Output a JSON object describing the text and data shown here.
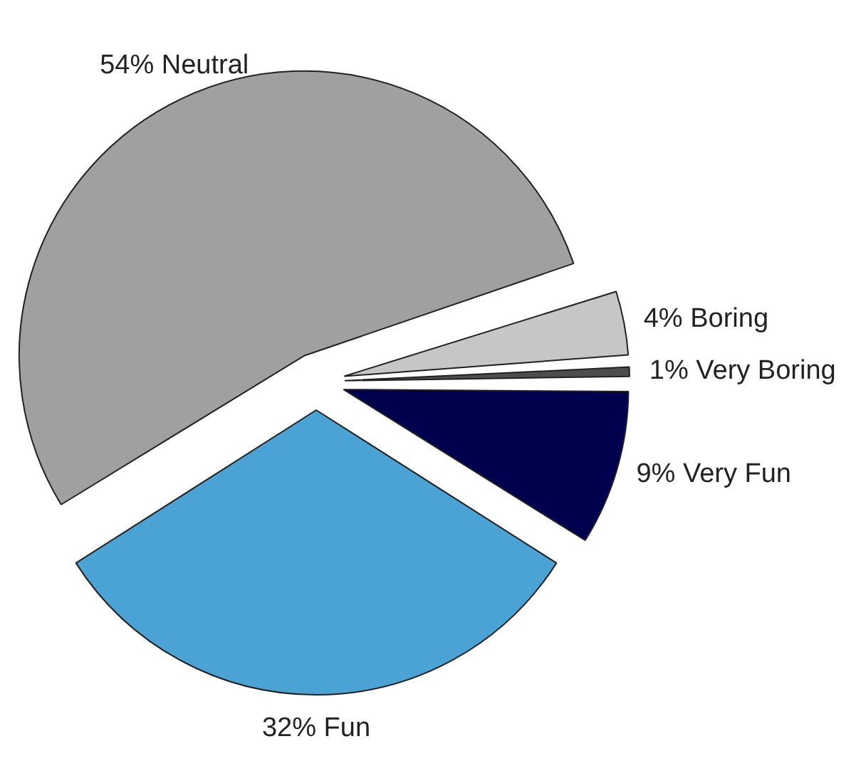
{
  "chart_data": {
    "type": "pie",
    "categories": [
      "Very Fun",
      "Fun",
      "Neutral",
      "Boring",
      "Very Boring"
    ],
    "values": [
      9,
      32,
      54,
      4,
      1
    ],
    "value_labels": [
      "9%",
      "32%",
      "54%",
      "4%",
      "1%"
    ],
    "colors": [
      "#00004f",
      "#4aa3d4",
      "#a0a0a0",
      "#c6c6c6",
      "#4d4d4d"
    ]
  }
}
